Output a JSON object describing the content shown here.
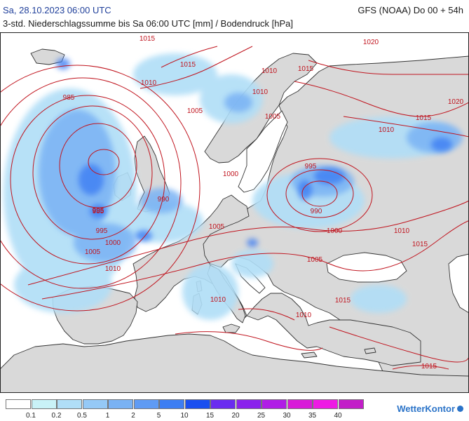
{
  "header": {
    "date": "Sa, 28.10.2023 06:00 UTC",
    "model": "GFS (NOAA) Do 00 + 54h",
    "description": "3-std. Niederschlagssumme bis Sa 06:00 UTC [mm] / Bodendruck [hPa]"
  },
  "isobar_labels": [
    "1015",
    "1015",
    "1010",
    "1010",
    "1015",
    "1020",
    "1010",
    "1005",
    "1005",
    "1020",
    "1010",
    "1015",
    "985",
    "1000",
    "995",
    "990",
    "995",
    "990",
    "1005",
    "1000",
    "1010",
    "1015",
    "985",
    "995",
    "1000",
    "1005",
    "1010",
    "1005",
    "1010",
    "1015",
    "1010",
    "1015"
  ],
  "legend": {
    "items": [
      {
        "label": "0.1",
        "color": "#ffffff"
      },
      {
        "label": "0.2",
        "color": "#c9f2f7"
      },
      {
        "label": "0.5",
        "color": "#b0def7"
      },
      {
        "label": "1",
        "color": "#95c9f6"
      },
      {
        "label": "2",
        "color": "#79b2f4"
      },
      {
        "label": "5",
        "color": "#5f9bf4"
      },
      {
        "label": "10",
        "color": "#3d7ef3"
      },
      {
        "label": "15",
        "color": "#1a4ff0"
      },
      {
        "label": "20",
        "color": "#6a2cf0"
      },
      {
        "label": "25",
        "color": "#8a22ec"
      },
      {
        "label": "30",
        "color": "#b01de6"
      },
      {
        "label": "35",
        "color": "#d81ad8"
      },
      {
        "label": "40",
        "color": "#ee1ae4"
      }
    ],
    "extra_color": "#c21ec8"
  },
  "brand": "WetterKontor",
  "colors": {
    "land": "#d9d9d9",
    "sea": "#ffffff",
    "coastline": "#333333",
    "isobar": "#c0141e",
    "title_date": "#1f3f9a",
    "brand": "#2a73c8"
  }
}
